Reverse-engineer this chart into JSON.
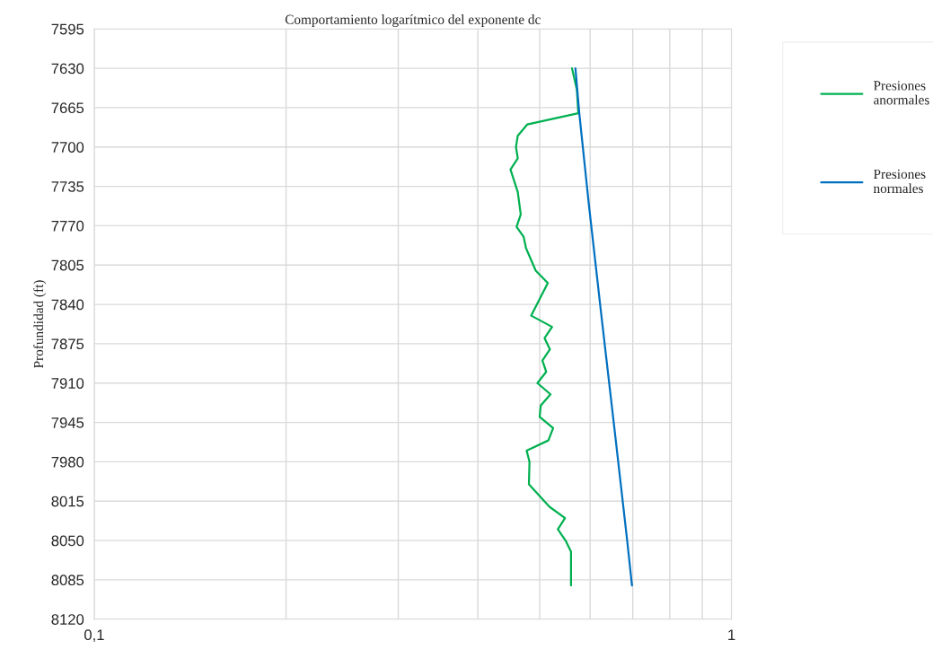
{
  "chart_data": {
    "type": "line",
    "title": "Comportamiento logarítmico del exponente dc",
    "ylabel": "Profundidad (ft)",
    "log": "x",
    "grid": true,
    "legend": "right",
    "line_style": "solid",
    "xlim": [
      0.1,
      1
    ],
    "xticks": [
      {
        "value": 0.1,
        "label": "0,1"
      },
      {
        "value": 0.2,
        "label": null
      },
      {
        "value": 0.3,
        "label": null
      },
      {
        "value": 0.4,
        "label": null
      },
      {
        "value": 0.5,
        "label": null
      },
      {
        "value": 0.6,
        "label": null
      },
      {
        "value": 0.7,
        "label": null
      },
      {
        "value": 0.8,
        "label": null
      },
      {
        "value": 0.9,
        "label": null
      },
      1
    ],
    "ylim": [
      8120,
      7595
    ],
    "yticks": [
      7595,
      7630,
      7665,
      7700,
      7735,
      7770,
      7805,
      7840,
      7875,
      7910,
      7945,
      7980,
      8015,
      8050,
      8085,
      8120
    ],
    "series": [
      {
        "name": "Presiones anormales",
        "color": "#00b050",
        "x": [
          0.562,
          0.572,
          0.575,
          0.478,
          0.462,
          0.459,
          0.462,
          0.45,
          0.462,
          0.467,
          0.46,
          0.472,
          0.476,
          0.493,
          0.515,
          0.485,
          0.523,
          0.509,
          0.519,
          0.505,
          0.512,
          0.496,
          0.52,
          0.502,
          0.5,
          0.525,
          0.516,
          0.477,
          0.482,
          0.481,
          0.518,
          0.548,
          0.534,
          0.549,
          0.56,
          0.56
        ],
        "values": [
          7630,
          7649,
          7670,
          7680,
          7690,
          7700,
          7710,
          7720,
          7740,
          7760,
          7771,
          7780,
          7790,
          7810,
          7821,
          7850,
          7860,
          7870,
          7880,
          7890,
          7900,
          7910,
          7920,
          7930,
          7940,
          7950,
          7961,
          7970,
          7980,
          8000,
          8020,
          8030,
          8040,
          8050,
          8060,
          8090
        ]
      },
      {
        "name": "Presiones normales",
        "color": "#0070c0",
        "x": [
          0.569,
          0.573,
          0.577,
          0.597,
          0.625,
          0.655,
          0.686,
          0.698
        ],
        "values": [
          7630,
          7650,
          7670,
          7750,
          7850,
          7950,
          8050,
          8090
        ]
      }
    ]
  }
}
